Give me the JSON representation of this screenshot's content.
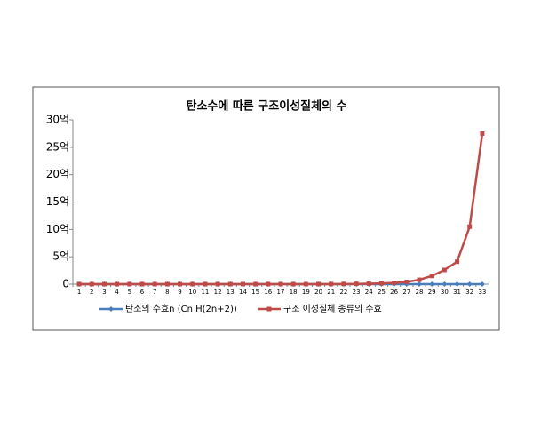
{
  "chart_data": {
    "type": "line",
    "title": "탄소수에 따른 구조이성질체의 수",
    "categories": [
      1,
      2,
      3,
      4,
      5,
      6,
      7,
      8,
      9,
      10,
      11,
      12,
      13,
      14,
      15,
      16,
      17,
      18,
      19,
      20,
      21,
      22,
      23,
      24,
      25,
      26,
      27,
      28,
      29,
      30,
      31,
      32,
      33
    ],
    "series": [
      {
        "name": "탄소의 수효n (Cn H(2n+2))",
        "color": "#4a7ebb",
        "marker": "diamond",
        "values": [
          1,
          2,
          3,
          4,
          5,
          6,
          7,
          8,
          9,
          10,
          11,
          12,
          13,
          14,
          15,
          16,
          17,
          18,
          19,
          20,
          21,
          22,
          23,
          24,
          25,
          26,
          27,
          28,
          29,
          30,
          31,
          32,
          33
        ]
      },
      {
        "name": "구조 이성질체 종류의 수효",
        "color": "#be4b48",
        "marker": "square",
        "values": [
          1,
          1,
          1,
          2,
          3,
          5,
          9,
          18,
          35,
          75,
          159,
          355,
          802,
          1858,
          4347,
          10359,
          24894,
          60523,
          148284,
          366319,
          910000,
          2300000,
          5000000,
          9000000,
          14000000,
          22000000,
          40000000,
          80000000,
          150000000,
          260000000,
          410000000,
          1050000000,
          2750000000
        ]
      }
    ],
    "ylim": [
      0,
      3000000000
    ],
    "yticks": [
      0,
      {
        "value": 500000000,
        "label": "5억"
      },
      {
        "value": 1000000000,
        "label": "10억"
      },
      {
        "value": 1500000000,
        "label": "15억"
      },
      {
        "value": 2000000000,
        "label": "20억"
      },
      {
        "value": 2500000000,
        "label": "25억"
      },
      {
        "value": 3000000000,
        "label": "30억"
      }
    ],
    "grid": false,
    "legend": "bottom"
  }
}
